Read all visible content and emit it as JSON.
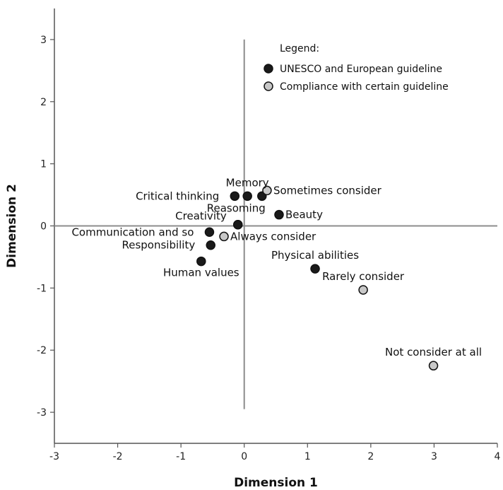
{
  "chart_data": {
    "type": "scatter",
    "xlabel": "Dimension 1",
    "ylabel": "Dimension 2",
    "xlim": [
      -3,
      4
    ],
    "ylim": [
      -3.5,
      3.5
    ],
    "x_ticks": [
      -3,
      -2,
      -1,
      0,
      1,
      2,
      3,
      4
    ],
    "y_ticks": [
      -3,
      -2,
      -1,
      0,
      1,
      2,
      3
    ],
    "reference_lines": {
      "x": 0,
      "y": 0
    },
    "grid": false,
    "legend": {
      "title": "Legend:",
      "position": "top-right"
    },
    "series": [
      {
        "name": "UNESCO and European guideline",
        "color": "#1a1a1a",
        "points": [
          {
            "label": "Memory",
            "x": 0.05,
            "y": 0.48,
            "anchor": "above"
          },
          {
            "label": "Critical thinking",
            "x": -0.15,
            "y": 0.48,
            "anchor": "left"
          },
          {
            "label": "",
            "x": 0.28,
            "y": 0.48
          },
          {
            "label": "Reasoming",
            "x": -0.1,
            "y": 0.02,
            "anchor": "above-right"
          },
          {
            "label": "Beauty",
            "x": 0.55,
            "y": 0.18,
            "anchor": "right"
          },
          {
            "label": "Creativity",
            "x": -0.1,
            "y": 0.02,
            "anchor": "above-left"
          },
          {
            "label": "Communication and so",
            "x": -0.55,
            "y": -0.1,
            "anchor": "left"
          },
          {
            "label": "Responsibility",
            "x": -0.53,
            "y": -0.31,
            "anchor": "left"
          },
          {
            "label": "Human values",
            "x": -0.68,
            "y": -0.57,
            "anchor": "below"
          },
          {
            "label": "Physical abilities",
            "x": 1.12,
            "y": -0.69,
            "anchor": "above"
          }
        ]
      },
      {
        "name": "Compliance with certain guideline",
        "color": "#c8c8c8",
        "points": [
          {
            "label": "Sometimes consider",
            "x": 0.36,
            "y": 0.57,
            "anchor": "right"
          },
          {
            "label": "Always consider",
            "x": -0.32,
            "y": -0.17,
            "anchor": "right"
          },
          {
            "label": "Rarely consider",
            "x": 1.88,
            "y": -1.03,
            "anchor": "above"
          },
          {
            "label": "Not consider at all",
            "x": 2.99,
            "y": -2.25,
            "anchor": "above"
          }
        ]
      }
    ]
  }
}
